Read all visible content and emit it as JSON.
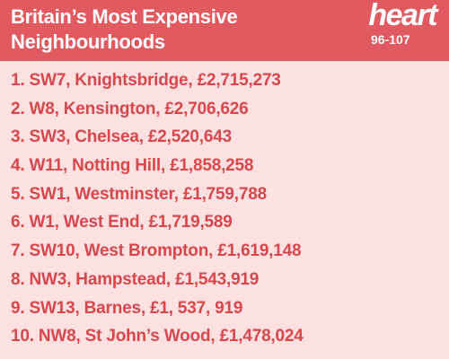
{
  "header": {
    "title_lines": [
      "Britain’s Most Expensive",
      "Neighbourhoods"
    ],
    "logo": {
      "name": "heart",
      "frequency": "96-107"
    }
  },
  "list": {
    "items": [
      "1. SW7, Knightsbridge, £2,715,273",
      "2. W8, Kensington, £2,706,626",
      "3. SW3, Chelsea, £2,520,643",
      "4. W11, Notting Hill, £1,858,258",
      "5. SW1, Westminster, £1,759,788",
      "6. W1, West End, £1,719,589",
      "7. SW10, West Brompton, £1,619,148",
      "8. NW3, Hampstead, £1,543,919",
      "9. SW13, Barnes, £1, 537, 919",
      "10. NW8, St John’s Wood, £1,478,024"
    ]
  }
}
